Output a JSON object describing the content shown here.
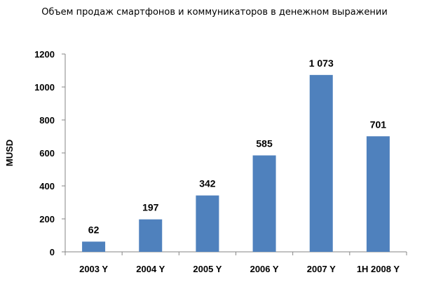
{
  "chart_data": {
    "type": "bar",
    "title": "Объем продаж смартфонов и коммуникаторов в денежном выражении",
    "ylabel": "MUSD",
    "xlabel": "",
    "categories": [
      "2003 Y",
      "2004 Y",
      "2005 Y",
      "2006 Y",
      "2007 Y",
      "1H 2008 Y"
    ],
    "values": [
      62,
      197,
      342,
      585,
      1073,
      701
    ],
    "value_labels": [
      "62",
      "197",
      "342",
      "585",
      "1 073",
      "701"
    ],
    "yticks": [
      "0",
      "200",
      "400",
      "600",
      "800",
      "1000",
      "1200"
    ],
    "ylim": [
      0,
      1200
    ],
    "bar_color": "#4f81bd",
    "axis_color": "#868686",
    "grid": false,
    "legend": "none"
  }
}
